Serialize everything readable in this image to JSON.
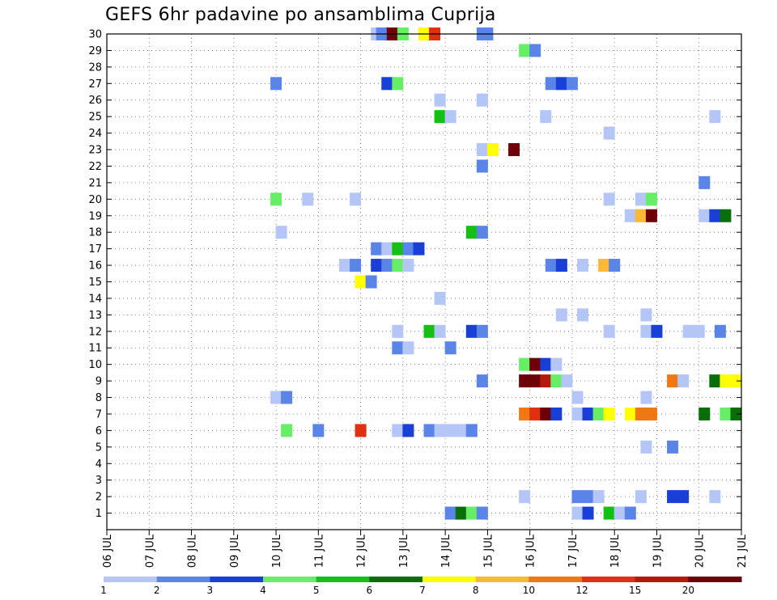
{
  "chart_data": {
    "type": "heatmap",
    "title": "GEFS 6hr padavine po ansamblima Cuprija",
    "xlabel": "",
    "ylabel": "",
    "x_ticks": [
      "06 JUL",
      "07 JUL",
      "08 JUL",
      "09 JUL",
      "10 JUL",
      "11 JUL",
      "12 JUL",
      "13 JUL",
      "14 JUL",
      "15 JUL",
      "16 JUL",
      "17 JUL",
      "18 JUL",
      "19 JUL",
      "20 JUL",
      "21 JUL"
    ],
    "xlim": [
      0,
      60
    ],
    "x_unit": "6-hour steps from 06 JUL 00Z",
    "y_ticks": [
      1,
      2,
      3,
      4,
      5,
      6,
      7,
      8,
      9,
      10,
      11,
      12,
      13,
      14,
      15,
      16,
      17,
      18,
      19,
      20,
      21,
      22,
      23,
      24,
      25,
      26,
      27,
      28,
      29,
      30
    ],
    "ylim": [
      0,
      30
    ],
    "grid": true,
    "colorbar": {
      "labels": [
        "1",
        "2",
        "3",
        "4",
        "5",
        "6",
        "7",
        "8",
        "10",
        "12",
        "15",
        "20"
      ],
      "colors": [
        "#b3c6f5",
        "#5a84e8",
        "#1a3fd6",
        "#66ee66",
        "#14c014",
        "#0a6e0a",
        "#ffff00",
        "#ffb833",
        "#f07812",
        "#e03010",
        "#b41a0c",
        "#6e0008"
      ]
    },
    "cells": [
      [
        30,
        25.5,
        0
      ],
      [
        30,
        26,
        1
      ],
      [
        30,
        27,
        11
      ],
      [
        30,
        28,
        3
      ],
      [
        30,
        30,
        6
      ],
      [
        30,
        31,
        9
      ],
      [
        30,
        35.5,
        1
      ],
      [
        30,
        36,
        1
      ],
      [
        29,
        39.5,
        3
      ],
      [
        29,
        40.5,
        1
      ],
      [
        27,
        16,
        1
      ],
      [
        27,
        26.5,
        2
      ],
      [
        27,
        27.5,
        3
      ],
      [
        27,
        42,
        1
      ],
      [
        27,
        43,
        2
      ],
      [
        27,
        44,
        1
      ],
      [
        26,
        31.5,
        0
      ],
      [
        26,
        35.5,
        0
      ],
      [
        25,
        31.5,
        4
      ],
      [
        25,
        32.5,
        0
      ],
      [
        25,
        41.5,
        0
      ],
      [
        25,
        57.5,
        0
      ],
      [
        24,
        47.5,
        0
      ],
      [
        23,
        35.5,
        0
      ],
      [
        23,
        36.5,
        6
      ],
      [
        23,
        38.5,
        11
      ],
      [
        22,
        35.5,
        1
      ],
      [
        21,
        56.5,
        1
      ],
      [
        20,
        16,
        3
      ],
      [
        20,
        19,
        0
      ],
      [
        20,
        23.5,
        0
      ],
      [
        20,
        47.5,
        0
      ],
      [
        20,
        50.5,
        0
      ],
      [
        20,
        51.5,
        3
      ],
      [
        19,
        49.5,
        0
      ],
      [
        19,
        50.5,
        7
      ],
      [
        19,
        51.5,
        11
      ],
      [
        19,
        56.5,
        0
      ],
      [
        19,
        57.5,
        2
      ],
      [
        19,
        58.5,
        5
      ],
      [
        18,
        16.5,
        0
      ],
      [
        18,
        34.5,
        4
      ],
      [
        18,
        35.5,
        1
      ],
      [
        17,
        25.5,
        1
      ],
      [
        17,
        26.5,
        0
      ],
      [
        17,
        27.5,
        4
      ],
      [
        17,
        28.5,
        1
      ],
      [
        17,
        29.5,
        2
      ],
      [
        16,
        22.5,
        0
      ],
      [
        16,
        23.5,
        1
      ],
      [
        16,
        25.5,
        2
      ],
      [
        16,
        26.5,
        1
      ],
      [
        16,
        27.5,
        3
      ],
      [
        16,
        28.5,
        0
      ],
      [
        16,
        42,
        1
      ],
      [
        16,
        43,
        2
      ],
      [
        16,
        45,
        0
      ],
      [
        16,
        47,
        7
      ],
      [
        16,
        48,
        1
      ],
      [
        15,
        24,
        6
      ],
      [
        15,
        25,
        1
      ],
      [
        14,
        31.5,
        0
      ],
      [
        13,
        43,
        0
      ],
      [
        13,
        45,
        0
      ],
      [
        13,
        51,
        0
      ],
      [
        12,
        27.5,
        0
      ],
      [
        12,
        30.5,
        4
      ],
      [
        12,
        31.5,
        0
      ],
      [
        12,
        34.5,
        2
      ],
      [
        12,
        35.5,
        1
      ],
      [
        12,
        47.5,
        0
      ],
      [
        12,
        51,
        0
      ],
      [
        12,
        52,
        2
      ],
      [
        12,
        55,
        0
      ],
      [
        12,
        56,
        0
      ],
      [
        12,
        58,
        1
      ],
      [
        11,
        27.5,
        1
      ],
      [
        11,
        28.5,
        0
      ],
      [
        11,
        32.5,
        1
      ],
      [
        10,
        39.5,
        3
      ],
      [
        10,
        40.5,
        11
      ],
      [
        10,
        41.5,
        2
      ],
      [
        10,
        42.5,
        0
      ],
      [
        9,
        35.5,
        1
      ],
      [
        9,
        39.5,
        11
      ],
      [
        9,
        40.5,
        11
      ],
      [
        9,
        41.5,
        10
      ],
      [
        9,
        42.5,
        3
      ],
      [
        9,
        43.5,
        0
      ],
      [
        9,
        53.5,
        8
      ],
      [
        9,
        54.5,
        0
      ],
      [
        9,
        57.5,
        5
      ],
      [
        9,
        58.5,
        6
      ],
      [
        9,
        59.5,
        6
      ],
      [
        8,
        16,
        0
      ],
      [
        8,
        17,
        1
      ],
      [
        8,
        44.5,
        0
      ],
      [
        8,
        51,
        0
      ],
      [
        7,
        39.5,
        8
      ],
      [
        7,
        40.5,
        9
      ],
      [
        7,
        41.5,
        11
      ],
      [
        7,
        42.5,
        2
      ],
      [
        7,
        44.5,
        0
      ],
      [
        7,
        45.5,
        2
      ],
      [
        7,
        46.5,
        3
      ],
      [
        7,
        47.5,
        6
      ],
      [
        7,
        49.5,
        6
      ],
      [
        7,
        50.5,
        8
      ],
      [
        7,
        51.5,
        8
      ],
      [
        7,
        56.5,
        5
      ],
      [
        7,
        58.5,
        3
      ],
      [
        7,
        59.5,
        5
      ],
      [
        6,
        17,
        3
      ],
      [
        6,
        20,
        1
      ],
      [
        6,
        24,
        9
      ],
      [
        6,
        27.5,
        0
      ],
      [
        6,
        28.5,
        2
      ],
      [
        6,
        30.5,
        1
      ],
      [
        6,
        31.5,
        0
      ],
      [
        6,
        32.5,
        0
      ],
      [
        6,
        33.5,
        0
      ],
      [
        6,
        34.5,
        1
      ],
      [
        5,
        51,
        0
      ],
      [
        5,
        53.5,
        1
      ],
      [
        2,
        39.5,
        0
      ],
      [
        2,
        44.5,
        1
      ],
      [
        2,
        45.5,
        1
      ],
      [
        2,
        46.5,
        0
      ],
      [
        2,
        50.5,
        0
      ],
      [
        2,
        53.5,
        2
      ],
      [
        2,
        54.5,
        2
      ],
      [
        2,
        57.5,
        0
      ],
      [
        1,
        32.5,
        1
      ],
      [
        1,
        33.5,
        5
      ],
      [
        1,
        34.5,
        3
      ],
      [
        1,
        35.5,
        1
      ],
      [
        1,
        44.5,
        0
      ],
      [
        1,
        45.5,
        2
      ],
      [
        1,
        47.5,
        4
      ],
      [
        1,
        48.5,
        0
      ],
      [
        1,
        49.5,
        1
      ]
    ]
  }
}
